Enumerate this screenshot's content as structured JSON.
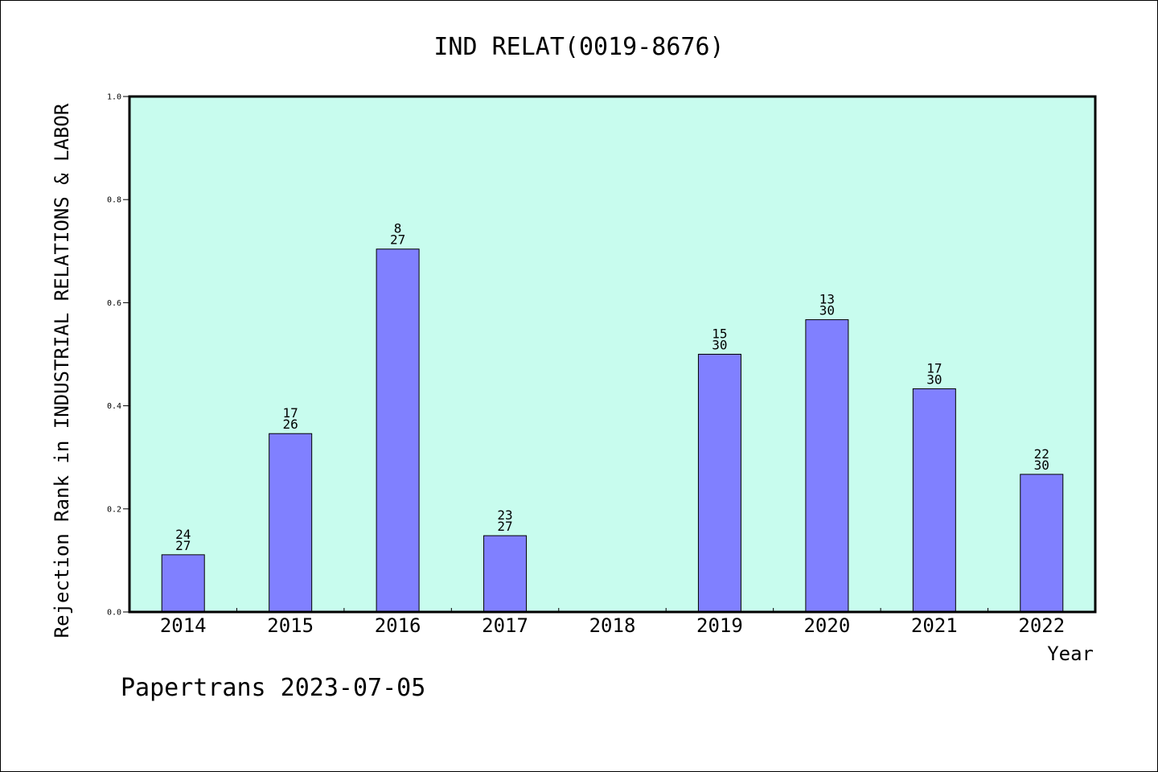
{
  "colors": {
    "plot_background": "#c8fcee",
    "bar_fill": "#8080ff",
    "bar_stroke": "#000000",
    "axis": "#000000"
  },
  "footer": {
    "text": "Papertrans 2023-07-05"
  },
  "chart_data": {
    "type": "bar",
    "title": "IND RELAT(0019-8676)",
    "xlabel": "Year",
    "ylabel": "Rejection Rank in INDUSTRIAL RELATIONS & LABOR",
    "ylim": [
      0,
      1.0
    ],
    "yticks": [
      "0.0",
      "0.2",
      "0.4",
      "0.6",
      "0.8",
      "1.0"
    ],
    "ytick_values": [
      0.0,
      0.2,
      0.4,
      0.6,
      0.8,
      1.0
    ],
    "grid": false,
    "categories": [
      "2014",
      "2015",
      "2016",
      "2017",
      "2018",
      "2019",
      "2020",
      "2021",
      "2022"
    ],
    "values": [
      0.111,
      0.346,
      0.704,
      0.148,
      null,
      0.5,
      0.567,
      0.433,
      0.267
    ],
    "labels": [
      {
        "rank": "24",
        "total": "27"
      },
      {
        "rank": "17",
        "total": "26"
      },
      {
        "rank": "8",
        "total": "27"
      },
      {
        "rank": "23",
        "total": "27"
      },
      null,
      {
        "rank": "15",
        "total": "30"
      },
      {
        "rank": "13",
        "total": "30"
      },
      {
        "rank": "17",
        "total": "30"
      },
      {
        "rank": "22",
        "total": "30"
      }
    ]
  }
}
